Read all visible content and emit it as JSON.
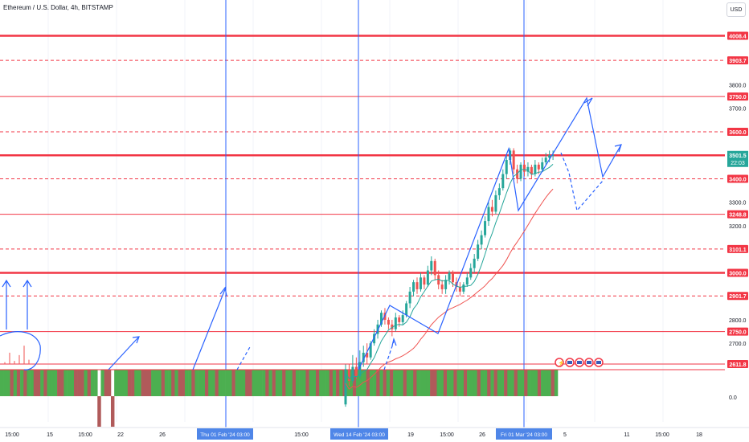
{
  "header": {
    "title": "Ethereum / U.S. Dollar, 4h, BITSTAMP",
    "currency_button": "USD"
  },
  "colors": {
    "up": "#26a69a",
    "down": "#ef5350",
    "level_line": "#f23645",
    "drawing": "#2962ff",
    "hist_green": "#4caf50",
    "hist_red": "#b05a5a",
    "ma_fast": "#26a69a",
    "ma_slow": "#ef5350"
  },
  "chart_data": {
    "type": "candlestick",
    "symbol": "Ethereum / U.S. Dollar",
    "timeframe": "4h",
    "exchange": "BITSTAMP",
    "ylim": [
      2580,
      4060
    ],
    "current_price": {
      "value": "3501.5",
      "countdown": "22:03"
    },
    "y_ticks": [
      "3800.0",
      "3700.0",
      "3300.0",
      "3200.0",
      "2800.0",
      "2700.0"
    ],
    "levels": [
      {
        "value": 4008.4,
        "label": "4008.4",
        "style": "thick"
      },
      {
        "value": 3903.7,
        "label": "3903.7",
        "style": "dashed"
      },
      {
        "value": 3750.0,
        "label": "3750.0",
        "style": "solid"
      },
      {
        "value": 3600.0,
        "label": "3600.0",
        "style": "dashed"
      },
      {
        "value": 3500.0,
        "label": "3500.0",
        "style": "thick"
      },
      {
        "value": 3400.0,
        "label": "3400.0",
        "style": "dashed"
      },
      {
        "value": 3248.8,
        "label": "3248.8",
        "style": "solid"
      },
      {
        "value": 3101.1,
        "label": "3101.1",
        "style": "dashed"
      },
      {
        "value": 3000.0,
        "label": "3000.0",
        "style": "thick"
      },
      {
        "value": 2901.7,
        "label": "2901.7",
        "style": "dashed"
      },
      {
        "value": 2750.0,
        "label": "2750.0",
        "style": "solid"
      },
      {
        "value": 2611.8,
        "label": "2611.8",
        "style": "solid"
      }
    ],
    "x_ticks": [
      "15:00",
      "15",
      "15:00",
      "22",
      "26",
      "15:00",
      "19",
      "15:00",
      "26",
      "5",
      "11",
      "15:00",
      "18"
    ],
    "x_highlight_labels": [
      "Thu 01 Feb '24   03:00",
      "Wed 14 Feb '24   03:00",
      "Fri 01 Mar '24   03:00"
    ],
    "candles": [
      [
        2440,
        2590,
        2430,
        2610
      ],
      [
        2590,
        2540,
        2520,
        2610
      ],
      [
        2540,
        2600,
        2530,
        2650
      ],
      [
        2600,
        2560,
        2550,
        2640
      ],
      [
        2560,
        2620,
        2550,
        2670
      ],
      [
        2620,
        2660,
        2600,
        2690
      ],
      [
        2660,
        2640,
        2610,
        2700
      ],
      [
        2640,
        2700,
        2630,
        2710
      ],
      [
        2700,
        2740,
        2690,
        2760
      ],
      [
        2740,
        2780,
        2720,
        2800
      ],
      [
        2780,
        2830,
        2770,
        2840
      ],
      [
        2830,
        2800,
        2780,
        2850
      ],
      [
        2800,
        2780,
        2760,
        2810
      ],
      [
        2780,
        2760,
        2730,
        2800
      ],
      [
        2760,
        2810,
        2750,
        2830
      ],
      [
        2810,
        2790,
        2770,
        2820
      ],
      [
        2790,
        2820,
        2780,
        2840
      ],
      [
        2820,
        2870,
        2810,
        2880
      ],
      [
        2870,
        2920,
        2850,
        2940
      ],
      [
        2920,
        2960,
        2900,
        2970
      ],
      [
        2960,
        2930,
        2910,
        2980
      ],
      [
        2930,
        2980,
        2920,
        3000
      ],
      [
        2980,
        2950,
        2930,
        2990
      ],
      [
        2950,
        3010,
        2940,
        3030
      ],
      [
        3010,
        3050,
        2990,
        3070
      ],
      [
        3050,
        2990,
        2970,
        3060
      ],
      [
        2990,
        2950,
        2930,
        3010
      ],
      [
        2950,
        2930,
        2910,
        2970
      ],
      [
        2930,
        2970,
        2910,
        2990
      ],
      [
        2970,
        3000,
        2950,
        3010
      ],
      [
        3000,
        2960,
        2940,
        3010
      ],
      [
        2960,
        2940,
        2920,
        2980
      ],
      [
        2940,
        2920,
        2900,
        2960
      ],
      [
        2920,
        2950,
        2910,
        2960
      ],
      [
        2950,
        2980,
        2940,
        3000
      ],
      [
        2980,
        3020,
        2970,
        3040
      ],
      [
        3020,
        3060,
        3000,
        3080
      ],
      [
        3060,
        3120,
        3050,
        3140
      ],
      [
        3120,
        3160,
        3100,
        3180
      ],
      [
        3160,
        3220,
        3150,
        3240
      ],
      [
        3220,
        3280,
        3200,
        3300
      ],
      [
        3280,
        3260,
        3240,
        3310
      ],
      [
        3260,
        3330,
        3250,
        3350
      ],
      [
        3330,
        3360,
        3310,
        3380
      ],
      [
        3360,
        3420,
        3350,
        3440
      ],
      [
        3420,
        3480,
        3400,
        3500
      ],
      [
        3480,
        3520,
        3460,
        3530
      ],
      [
        3520,
        3440,
        3420,
        3530
      ],
      [
        3440,
        3400,
        3380,
        3460
      ],
      [
        3400,
        3460,
        3390,
        3470
      ],
      [
        3460,
        3430,
        3410,
        3480
      ],
      [
        3430,
        3450,
        3410,
        3470
      ],
      [
        3450,
        3420,
        3400,
        3460
      ],
      [
        3420,
        3460,
        3410,
        3480
      ],
      [
        3460,
        3440,
        3420,
        3470
      ],
      [
        3440,
        3470,
        3430,
        3490
      ],
      [
        3470,
        3490,
        3460,
        3510
      ],
      [
        3490,
        3500,
        3470,
        3520
      ],
      [
        3500,
        3501,
        3480,
        3520
      ]
    ],
    "histogram": [
      1,
      1,
      1,
      -1,
      1,
      -1,
      1,
      -1,
      1,
      1,
      -1,
      -1,
      1,
      -1,
      1,
      1,
      1,
      -1,
      -1,
      1,
      1,
      1,
      -1,
      -1,
      -1,
      1,
      -1,
      1,
      1,
      -1,
      1,
      -1,
      -1,
      -1,
      1,
      1,
      1,
      1,
      -1,
      -1,
      1,
      1,
      -1,
      -1,
      -1,
      1,
      1,
      1,
      -1,
      1,
      1,
      -1,
      1,
      -1,
      -1,
      1,
      1,
      -1,
      1,
      1,
      1,
      -1,
      1,
      1,
      -1,
      1,
      1,
      1,
      1,
      -1,
      1,
      1,
      1,
      -1,
      -1,
      1,
      1,
      1,
      1,
      -1,
      1,
      -1,
      1,
      1,
      -1,
      1,
      1,
      -1,
      1,
      1,
      1,
      -1,
      1,
      1,
      -1,
      1,
      1,
      1,
      -1,
      1,
      -1,
      1,
      -1,
      1,
      1,
      -1,
      1,
      1,
      1,
      -1,
      1,
      1,
      -1,
      1,
      -1,
      1,
      -1,
      1,
      1,
      1,
      -1,
      1,
      1,
      -1,
      1,
      1,
      1,
      1,
      -1,
      -1,
      1,
      1,
      -1,
      1,
      1,
      -1,
      1,
      1,
      -1,
      1,
      1,
      1,
      -1,
      1,
      1,
      -1,
      1,
      -1,
      1,
      1,
      -1,
      1,
      1,
      -1,
      1,
      1,
      -1,
      1,
      1,
      1,
      -1,
      1,
      1,
      1,
      -1,
      1
    ],
    "hist_zero_label": "0.0",
    "event_markers": [
      "flag-us",
      "flag-us",
      "flag-us",
      "flag-us"
    ]
  }
}
